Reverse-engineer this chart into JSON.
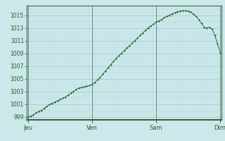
{
  "background_color": "#cce8ea",
  "plot_bg_color": "#cce8ea",
  "grid_major_color": "#a8c8cc",
  "grid_minor_color": "#b8d8dc",
  "line_color": "#1a5c1a",
  "marker_color": "#1a5c1a",
  "ylim": [
    998.5,
    1016.5
  ],
  "yticks": [
    999,
    1001,
    1003,
    1005,
    1007,
    1009,
    1011,
    1013,
    1015
  ],
  "xtick_labels": [
    "Jeu",
    "Ven",
    "Sam",
    "Dim"
  ],
  "xtick_positions": [
    0,
    24,
    48,
    72
  ],
  "vline_color": "#5a8a8a",
  "pressure_values": [
    999.0,
    999.1,
    999.3,
    999.6,
    999.8,
    1000.0,
    1000.3,
    1000.6,
    1000.9,
    1001.1,
    1001.3,
    1001.5,
    1001.7,
    1001.9,
    1002.1,
    1002.4,
    1002.7,
    1003.0,
    1003.3,
    1003.5,
    1003.6,
    1003.7,
    1003.8,
    1003.9,
    1004.1,
    1004.4,
    1004.8,
    1005.2,
    1005.7,
    1006.2,
    1006.7,
    1007.2,
    1007.7,
    1008.2,
    1008.6,
    1009.0,
    1009.4,
    1009.8,
    1010.2,
    1010.6,
    1011.0,
    1011.4,
    1011.8,
    1012.2,
    1012.6,
    1013.0,
    1013.3,
    1013.6,
    1013.9,
    1014.1,
    1014.3,
    1014.6,
    1014.8,
    1015.0,
    1015.2,
    1015.4,
    1015.55,
    1015.65,
    1015.7,
    1015.7,
    1015.65,
    1015.5,
    1015.2,
    1014.8,
    1014.3,
    1013.7,
    1013.1,
    1013.0,
    1013.1,
    1012.8,
    1011.8,
    1010.5,
    1009.1
  ]
}
